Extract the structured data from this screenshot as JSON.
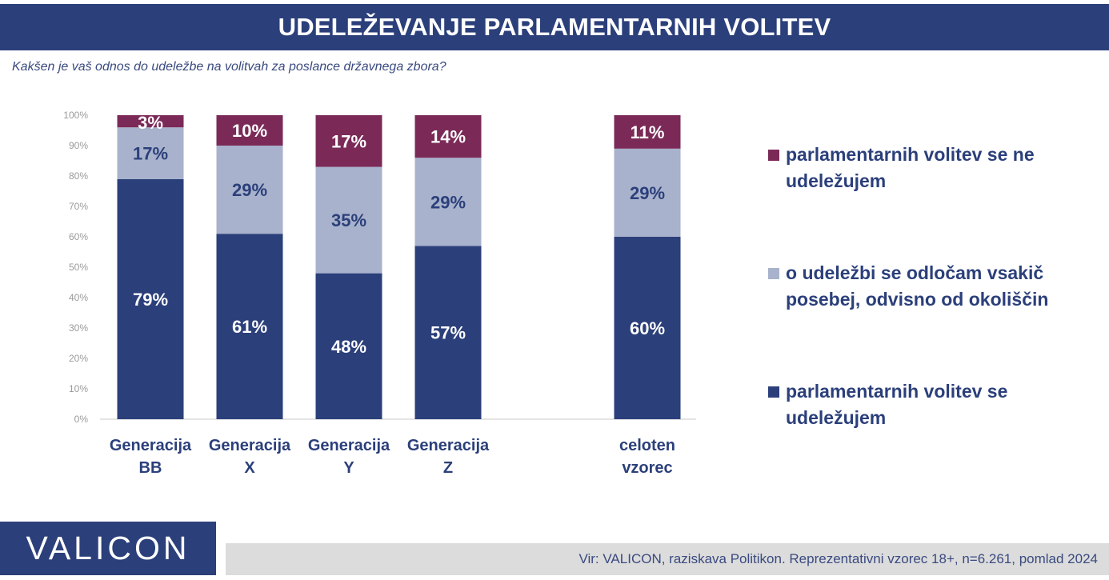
{
  "header": {
    "title": "UDELEŽEVANJE PARLAMENTARNIH VOLITEV",
    "question": "Kakšen je vaš odnos do udeležbe na volitvah za poslance državnega zbora?"
  },
  "chart_data": {
    "type": "bar",
    "stacked": true,
    "percent": true,
    "categories": [
      [
        "Generacija",
        "BB"
      ],
      [
        "Generacija",
        "X"
      ],
      [
        "Generacija",
        "Y"
      ],
      [
        "Generacija",
        "Z"
      ],
      [
        "celoten",
        "vzorec"
      ]
    ],
    "series": [
      {
        "name": "parlamentarnih volitev se udeležujem",
        "color": "#2b3f7a",
        "label_color": "#ffffff",
        "values": [
          79,
          61,
          48,
          57,
          60
        ],
        "labels": [
          "79%",
          "61%",
          "48%",
          "57%",
          "60%"
        ]
      },
      {
        "name": "o udeležbi se odločam vsakič posebej, odvisno od okoliščin",
        "color": "#a8b2cc",
        "label_color": "#2b3f7a",
        "values": [
          17,
          29,
          35,
          29,
          29
        ],
        "labels": [
          "17%",
          "29%",
          "35%",
          "29%",
          "29%"
        ]
      },
      {
        "name": "parlamentarnih volitev se ne udeležujem",
        "color": "#7b2a58",
        "label_color": "#ffffff",
        "values": [
          3,
          10,
          17,
          14,
          11
        ],
        "labels": [
          "3%",
          "10%",
          "17%",
          "14%",
          "11%"
        ]
      }
    ],
    "ylim": [
      0,
      100
    ],
    "yticks": [
      "0%",
      "10%",
      "20%",
      "30%",
      "40%",
      "50%",
      "60%",
      "70%",
      "80%",
      "90%",
      "100%"
    ],
    "legend_position": "right",
    "grid": false
  },
  "legend": {
    "items": [
      {
        "label": "parlamentarnih volitev se ne udeležujem",
        "color": "#7b2a58"
      },
      {
        "label": "o udeležbi se odločam vsakič posebej, odvisno od okoliščin",
        "color": "#a8b2cc"
      },
      {
        "label": "parlamentarnih volitev se udeležujem",
        "color": "#2b3f7a"
      }
    ]
  },
  "footer": {
    "brand": "VALICON",
    "source": "Vir: VALICON, raziskava Politikon. Reprezentativni vzorec 18+, n=6.261, pomlad 2024"
  }
}
